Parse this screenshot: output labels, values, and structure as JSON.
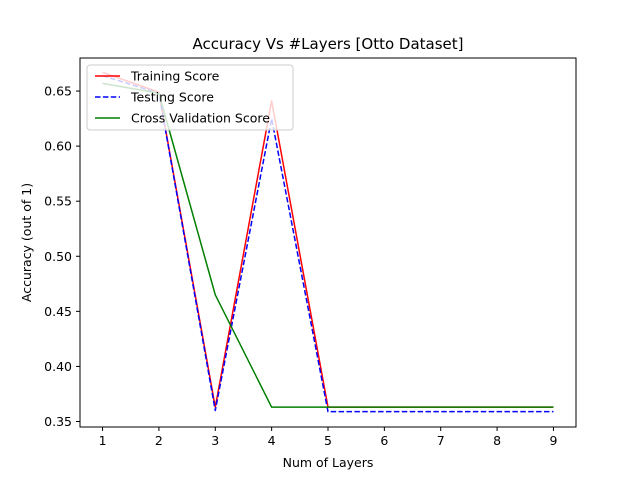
{
  "chart_data": {
    "type": "line",
    "title": "Accuracy Vs #Layers [Otto Dataset]",
    "xlabel": "Num of Layers",
    "ylabel": "Accuracy (out of 1)",
    "xlim": [
      0.6,
      9.4
    ],
    "ylim": [
      0.345,
      0.68
    ],
    "x": [
      1,
      2,
      3,
      4,
      5,
      6,
      7,
      8,
      9
    ],
    "xticks": [
      1,
      2,
      3,
      4,
      5,
      6,
      7,
      8,
      9
    ],
    "yticks": [
      0.35,
      0.4,
      0.45,
      0.5,
      0.55,
      0.6,
      0.65
    ],
    "ytick_labels": [
      "0.35",
      "0.40",
      "0.45",
      "0.50",
      "0.55",
      "0.60",
      "0.65"
    ],
    "legend_position": "top-left",
    "grid": false,
    "series": [
      {
        "name": "Training Score",
        "color": "#ff0000",
        "dash": "solid",
        "values": [
          0.667,
          0.649,
          0.363,
          0.641,
          0.363,
          0.363,
          0.363,
          0.363,
          0.363
        ]
      },
      {
        "name": "Testing Score",
        "color": "#0000ff",
        "dash": "dashed",
        "values": [
          0.664,
          0.648,
          0.36,
          0.625,
          0.359,
          0.359,
          0.359,
          0.359,
          0.359
        ]
      },
      {
        "name": "Cross Validation Score",
        "color": "#008000",
        "dash": "solid",
        "values": [
          0.657,
          0.648,
          0.465,
          0.363,
          0.363,
          0.363,
          0.363,
          0.363,
          0.363
        ]
      }
    ]
  }
}
